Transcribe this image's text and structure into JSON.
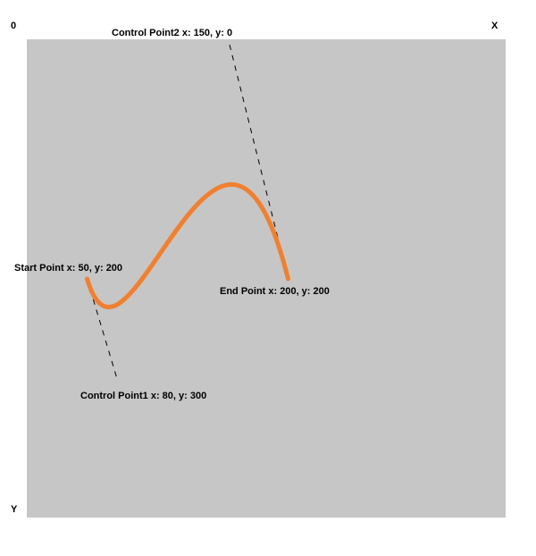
{
  "axes": {
    "origin_label": "0",
    "x_label": "X",
    "y_label": "Y"
  },
  "colors": {
    "canvas_background": "#c6c6c6",
    "curve": "#f08030",
    "guide_line": "#000000",
    "text": "#000000"
  },
  "curve": {
    "start": {
      "x": 50,
      "y": 200
    },
    "control1": {
      "x": 80,
      "y": 300
    },
    "control2": {
      "x": 150,
      "y": 0
    },
    "end": {
      "x": 200,
      "y": 200
    }
  },
  "labels": {
    "start_point": "Start Point x: 50, y: 200",
    "control_point1": "Control Point1 x: 80, y: 300",
    "control_point2": "Control Point2 x: 150, y: 0",
    "end_point": "End Point x: 200, y: 200"
  }
}
